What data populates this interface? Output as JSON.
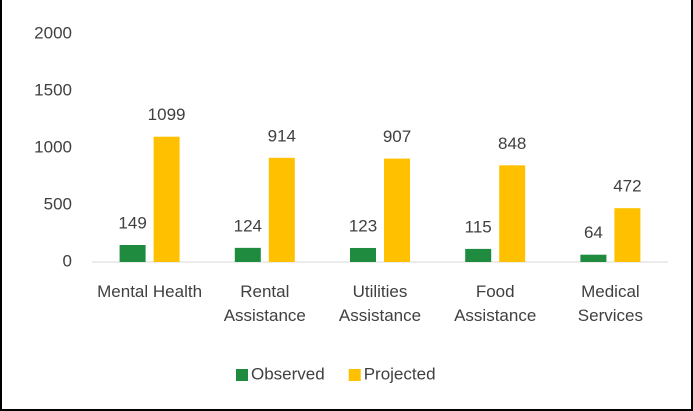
{
  "chart_data": {
    "type": "bar",
    "categories": [
      "Mental Health",
      "Rental Assistance",
      "Utilities Assistance",
      "Food Assistance",
      "Medical Services"
    ],
    "series": [
      {
        "name": "Observed",
        "color": "#1e8b3e",
        "values": [
          149,
          124,
          123,
          115,
          64
        ]
      },
      {
        "name": "Projected",
        "color": "#ffc000",
        "values": [
          1099,
          914,
          907,
          848,
          472
        ]
      }
    ],
    "ylim": [
      0,
      2000
    ],
    "yticks": [
      0,
      500,
      1000,
      1500,
      2000
    ],
    "grid": false,
    "legend": "bottom"
  }
}
